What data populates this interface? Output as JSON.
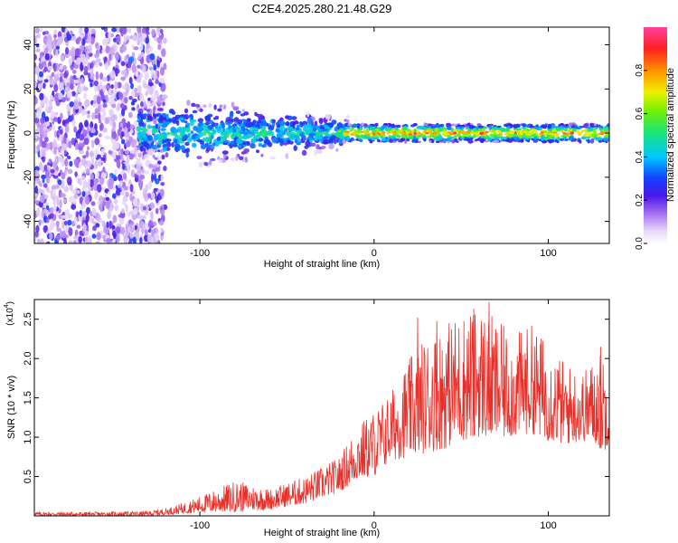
{
  "chart_data": [
    {
      "type": "heatmap",
      "title": "C2E4.2025.280.21.48.G29",
      "xlabel": "Height of straight line (km)",
      "ylabel": "Frequency (Hz)",
      "xlim": [
        -195,
        135
      ],
      "ylim": [
        -50,
        48
      ],
      "xticks": [
        -100,
        0,
        100
      ],
      "xtick_labels": [
        "-100",
        "0",
        "100"
      ],
      "yticks": [
        -40,
        -20,
        0,
        20,
        40
      ],
      "ytick_labels": [
        "-40",
        "-20",
        "0",
        "20",
        "40"
      ],
      "colorbar": {
        "label": "Normalized spectral amplitude",
        "range": [
          0,
          1
        ],
        "ticks": [
          0,
          0.2,
          0.4,
          0.6,
          0.8
        ],
        "tick_labels": [
          "0.0",
          "0.2",
          "0.4",
          "0.6",
          "0.8"
        ]
      },
      "description_bands": [
        {
          "x_range": [
            -195,
            -120
          ],
          "freq_spread": [
            -50,
            48
          ],
          "mean_amplitude": 0.15
        },
        {
          "x_range": [
            -120,
            -20
          ],
          "freq_spread": [
            -15,
            15
          ],
          "mean_amplitude": 0.35
        },
        {
          "x_range": [
            -20,
            135
          ],
          "freq_spread": [
            -4,
            4
          ],
          "mean_amplitude": 0.6
        }
      ]
    },
    {
      "type": "line",
      "xlabel": "Height of straight line (km)",
      "ylabel": "SNR (10 * v/v)",
      "y_multiplier_label": "(x10",
      "y_multiplier_exp": "4",
      "xlim": [
        -195,
        135
      ],
      "ylim": [
        0,
        2.75
      ],
      "xticks": [
        -100,
        0,
        100
      ],
      "xtick_labels": [
        "-100",
        "0",
        "100"
      ],
      "yticks": [
        0.5,
        1.0,
        1.5,
        2.0,
        2.5
      ],
      "ytick_labels": [
        "0.5",
        "1.0",
        "1.5",
        "2.0",
        "2.5"
      ],
      "color": "#e8302a",
      "envelope": {
        "x": [
          -195,
          -160,
          -130,
          -115,
          -100,
          -80,
          -60,
          -40,
          -20,
          -10,
          0,
          10,
          20,
          30,
          40,
          50,
          60,
          70,
          80,
          90,
          100,
          110,
          120,
          128,
          132,
          135
        ],
        "y_high": [
          0.05,
          0.05,
          0.06,
          0.12,
          0.25,
          0.45,
          0.35,
          0.5,
          0.75,
          1.15,
          1.35,
          1.6,
          2.0,
          2.3,
          2.45,
          2.6,
          2.7,
          2.5,
          2.3,
          2.45,
          2.2,
          1.95,
          1.85,
          2.05,
          2.15,
          1.6
        ],
        "y_low": [
          0.0,
          0.0,
          0.0,
          0.02,
          0.04,
          0.05,
          0.08,
          0.15,
          0.3,
          0.45,
          0.5,
          0.7,
          0.75,
          0.8,
          0.85,
          0.95,
          1.0,
          0.95,
          1.0,
          1.05,
          0.95,
          0.9,
          0.95,
          0.9,
          0.8,
          0.95
        ]
      },
      "peaks": [
        {
          "x": 66,
          "y": 2.72
        },
        {
          "x": 25,
          "y": 2.52
        },
        {
          "x": 36,
          "y": 2.48
        },
        {
          "x": 57,
          "y": 2.55
        },
        {
          "x": 130,
          "y": 2.15
        }
      ]
    }
  ]
}
